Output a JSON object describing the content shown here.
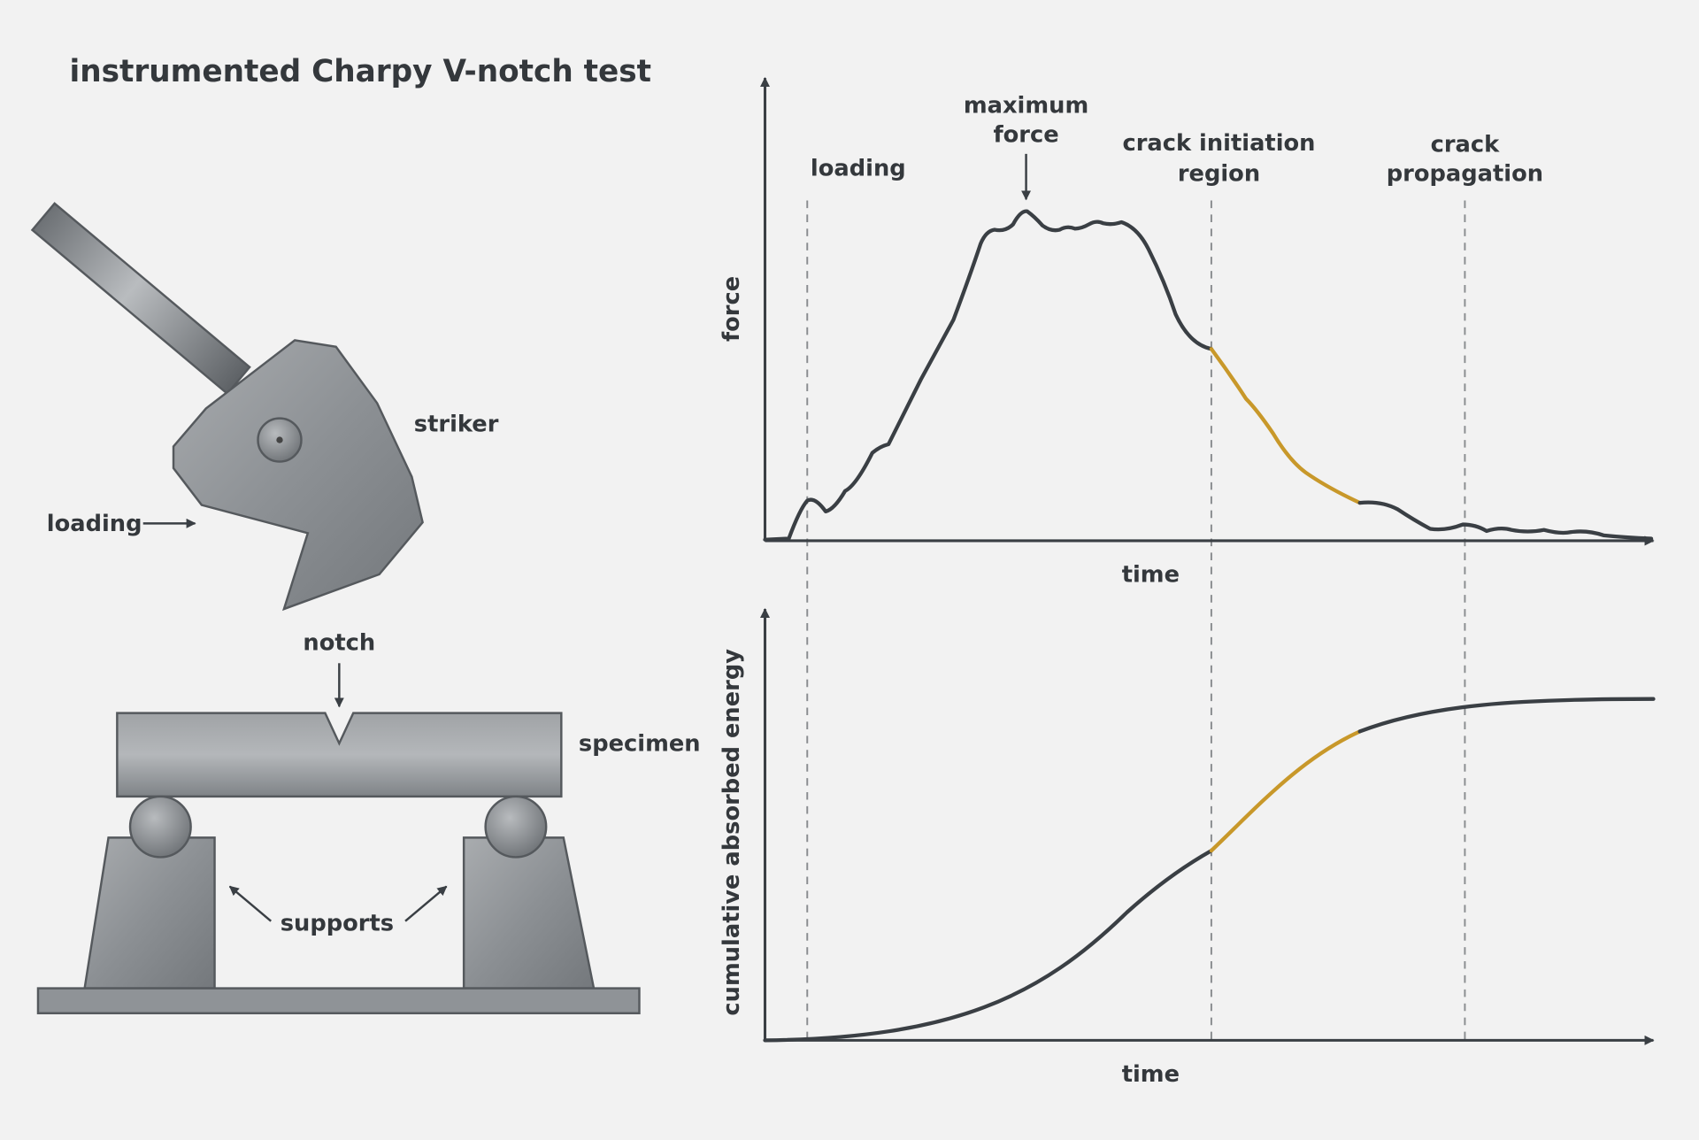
{
  "title": "instrumented Charpy V-notch test",
  "apparatus": {
    "striker": "striker",
    "loading": "loading",
    "notch": "notch",
    "specimen": "specimen",
    "supports": "supports"
  },
  "force_plot": {
    "y_label": "force",
    "x_label": "time",
    "annotations": [
      {
        "lines": [
          "loading"
        ]
      },
      {
        "lines": [
          "maximum",
          "force"
        ]
      },
      {
        "lines": [
          "crack initiation",
          "region"
        ]
      },
      {
        "lines": [
          "crack",
          "propagation"
        ]
      }
    ]
  },
  "energy_plot": {
    "y_label": "cumulative absorbed energy",
    "x_label": "time"
  }
}
